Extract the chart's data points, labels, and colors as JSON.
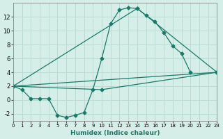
{
  "xlabel": "Humidex (Indice chaleur)",
  "bg_color": "#d6eee8",
  "grid_color": "#b8d8d0",
  "line_color": "#1a7a6a",
  "xlim": [
    0,
    23
  ],
  "ylim": [
    -3,
    14
  ],
  "xticks": [
    0,
    1,
    2,
    3,
    4,
    5,
    6,
    7,
    8,
    9,
    10,
    11,
    12,
    13,
    14,
    15,
    16,
    17,
    18,
    19,
    20,
    21,
    22,
    23
  ],
  "yticks": [
    -2,
    0,
    2,
    4,
    6,
    8,
    10,
    12
  ],
  "curve1_x": [
    0,
    1,
    2,
    3,
    4,
    5,
    6,
    7,
    8,
    9,
    10,
    11,
    12,
    13,
    14,
    15,
    16,
    17,
    18,
    19,
    20
  ],
  "curve1_y": [
    2.0,
    1.5,
    0.2,
    0.2,
    0.2,
    -2.2,
    -2.5,
    -2.2,
    -1.8,
    1.5,
    6.0,
    11.0,
    13.0,
    13.3,
    13.2,
    12.2,
    11.3,
    9.7,
    7.8,
    6.7,
    4.0
  ],
  "line1_x": [
    0,
    23
  ],
  "line1_y": [
    2.0,
    4.0
  ],
  "line2_x": [
    0,
    10,
    23
  ],
  "line2_y": [
    2.0,
    1.5,
    4.0
  ],
  "line3_x": [
    0,
    14,
    23
  ],
  "line3_y": [
    2.0,
    13.2,
    4.0
  ]
}
